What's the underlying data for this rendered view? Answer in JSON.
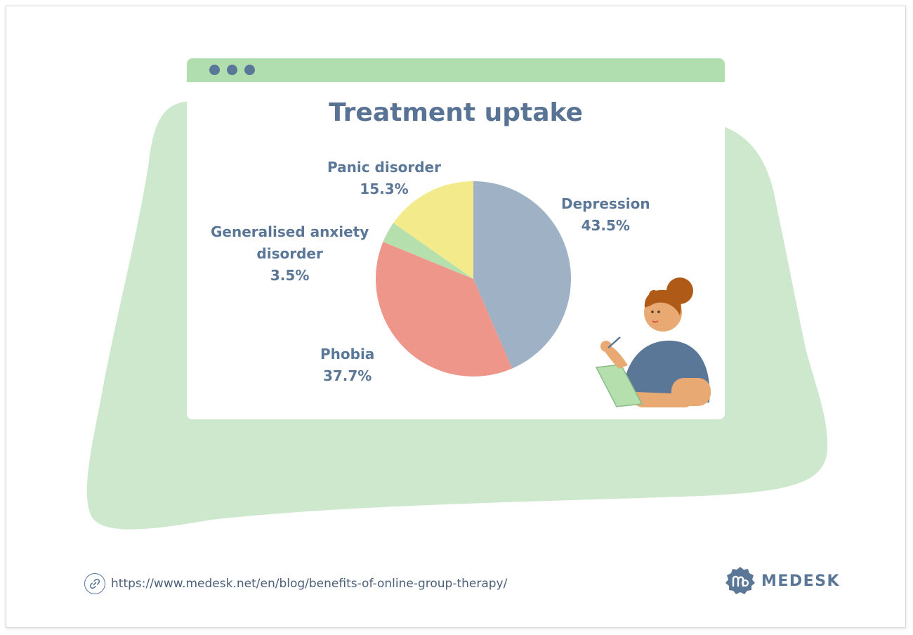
{
  "chart_data": {
    "type": "pie",
    "title": "Treatment uptake",
    "slices": [
      {
        "label": "Depression",
        "value": 43.5,
        "display": "43.5%",
        "color": "#9eb1c5"
      },
      {
        "label": "Phobia",
        "value": 37.7,
        "display": "37.7%",
        "color": "#ef968a"
      },
      {
        "label": "Generalised anxiety disorder",
        "value": 3.5,
        "display": "3.5%",
        "color": "#b5e0ae"
      },
      {
        "label": "Panic disorder",
        "value": 15.3,
        "display": "15.3%",
        "color": "#f2ea8b"
      }
    ],
    "start_angle": "12 o'clock",
    "direction": "clockwise"
  },
  "labels": {
    "depression": {
      "name": "Depression",
      "pct": "43.5%"
    },
    "phobia": {
      "name": "Phobia",
      "pct": "37.7%"
    },
    "anxiety": {
      "name_line1": "Generalised anxiety",
      "name_line2": "disorder",
      "pct": "3.5%"
    },
    "panic": {
      "name": "Panic disorder",
      "pct": "15.3%"
    }
  },
  "footer": {
    "url": "https://www.medesk.net/en/blog/benefits-of-online-group-therapy/",
    "brand": "MEDESK"
  },
  "icons": {
    "link": "link-icon",
    "logo": "medesk-logo-icon",
    "window_dots": "window-dots"
  },
  "colors": {
    "accent": "#5b7797",
    "window_bar": "#b0deaf",
    "background_blob": "#cde8cc"
  }
}
